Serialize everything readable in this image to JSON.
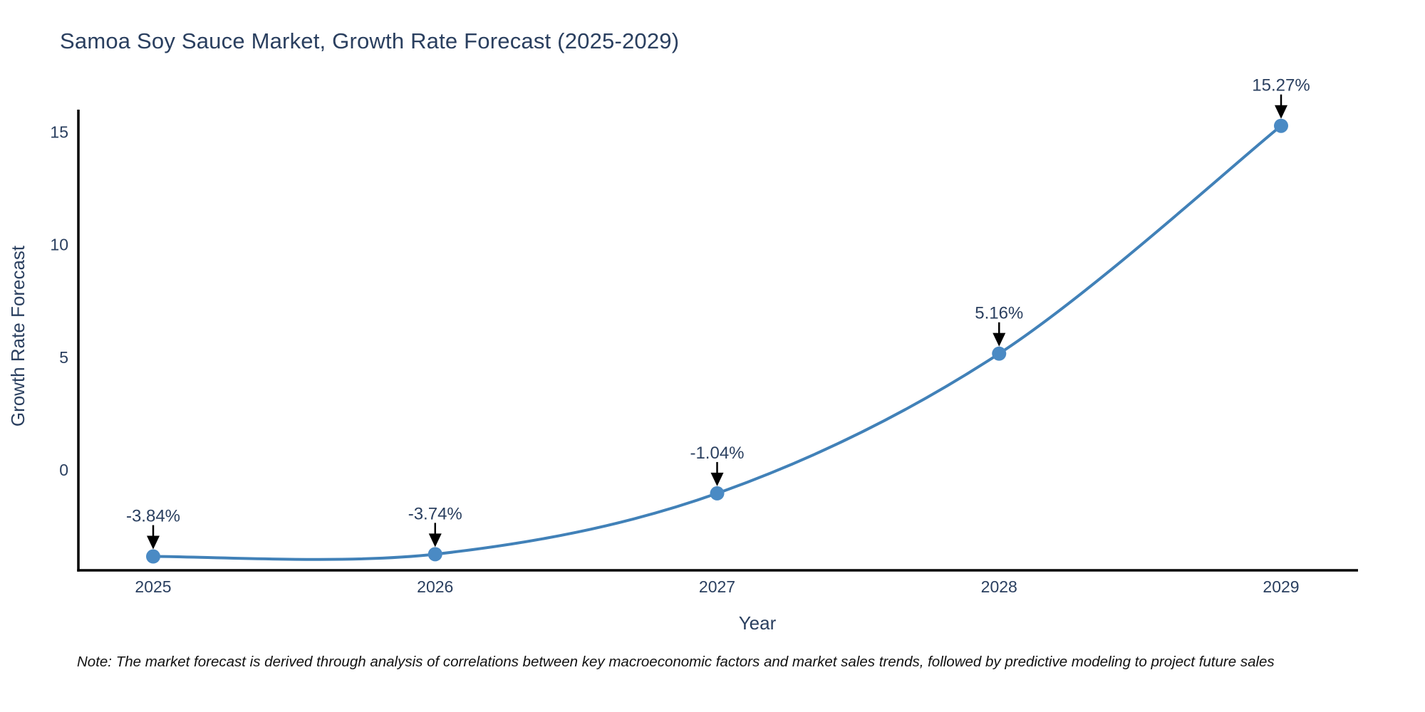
{
  "title": "Samoa Soy Sauce Market, Growth Rate Forecast (2025-2029)",
  "note": "Note: The market forecast is derived through analysis of correlations between key macroeconomic factors and market sales trends, followed by predictive modeling to project future sales",
  "chart_data": {
    "type": "line",
    "title": "Samoa Soy Sauce Market, Growth Rate Forecast (2025-2029)",
    "xlabel": "Year",
    "ylabel": "Growth Rate Forecast",
    "x": [
      2025,
      2026,
      2027,
      2028,
      2029
    ],
    "values": [
      -3.84,
      -3.74,
      -1.04,
      5.16,
      15.27
    ],
    "point_labels": [
      "-3.84%",
      "-3.74%",
      "-1.04%",
      "5.16%",
      "15.27%"
    ],
    "xtick_labels": [
      "2025",
      "2026",
      "2027",
      "2028",
      "2029"
    ],
    "yticks": [
      0,
      5,
      10,
      15
    ],
    "ytick_labels": [
      "0",
      "5",
      "10",
      "15"
    ],
    "ylim": [
      -4.45,
      16.0
    ],
    "grid": false,
    "legend_position": "none",
    "line_shape": "spline",
    "colors": {
      "line": "#4181b8",
      "marker": "#4a8ac4",
      "axis": "#000000",
      "text": "#2a3f5f",
      "annotation_text": "#2a3f5f",
      "arrow": "#000000",
      "background": "#ffffff"
    }
  }
}
